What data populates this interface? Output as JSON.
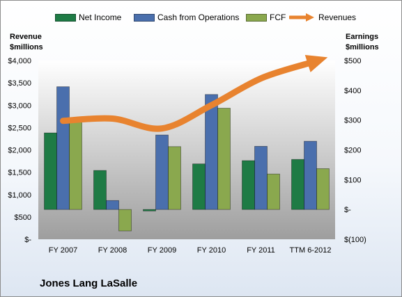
{
  "company": "Jones Lang LaSalle",
  "legend": [
    {
      "name": "Net Income",
      "color": "#1e7b45",
      "kind": "bar"
    },
    {
      "name": "Cash from Operations",
      "color": "#4a6fad",
      "kind": "bar"
    },
    {
      "name": "FCF",
      "color": "#8aa84e",
      "kind": "bar"
    },
    {
      "name": "Revenues",
      "color": "#e8832f",
      "kind": "arrow"
    }
  ],
  "left_axis_title": [
    "Revenue",
    "$millions"
  ],
  "right_axis_title": [
    "Earnings",
    "$millions"
  ],
  "chart_data": {
    "type": "bar",
    "categories": [
      "FY 2007",
      "FY 2008",
      "FY 2009",
      "FY 2010",
      "FY 2011",
      "TTM 6-2012"
    ],
    "series": [
      {
        "name": "Net Income",
        "axis": "right",
        "color": "#1e7b45",
        "values": [
          257,
          131,
          -5,
          153,
          164,
          168
        ]
      },
      {
        "name": "Cash from Operations",
        "axis": "right",
        "color": "#4a6fad",
        "values": [
          412,
          30,
          250,
          386,
          212,
          229
        ]
      },
      {
        "name": "FCF",
        "axis": "right",
        "color": "#8aa84e",
        "values": [
          307,
          -72,
          211,
          340,
          119,
          137
        ]
      },
      {
        "name": "Revenues",
        "axis": "left",
        "type": "line",
        "color": "#e8832f",
        "values": [
          2650,
          2700,
          2480,
          3000,
          3600,
          3950
        ]
      }
    ],
    "left_axis": {
      "ticks": [
        "$-",
        "$500",
        "$1,000",
        "$1,500",
        "$2,000",
        "$2,500",
        "$3,000",
        "$3,500",
        "$4,000"
      ],
      "range": [
        0,
        4000
      ]
    },
    "right_axis": {
      "ticks": [
        "$(100)",
        "$-",
        "$100",
        "$200",
        "$300",
        "$400",
        "$500"
      ],
      "range": [
        -100,
        500
      ]
    },
    "grid": false,
    "legend_position": "top"
  }
}
